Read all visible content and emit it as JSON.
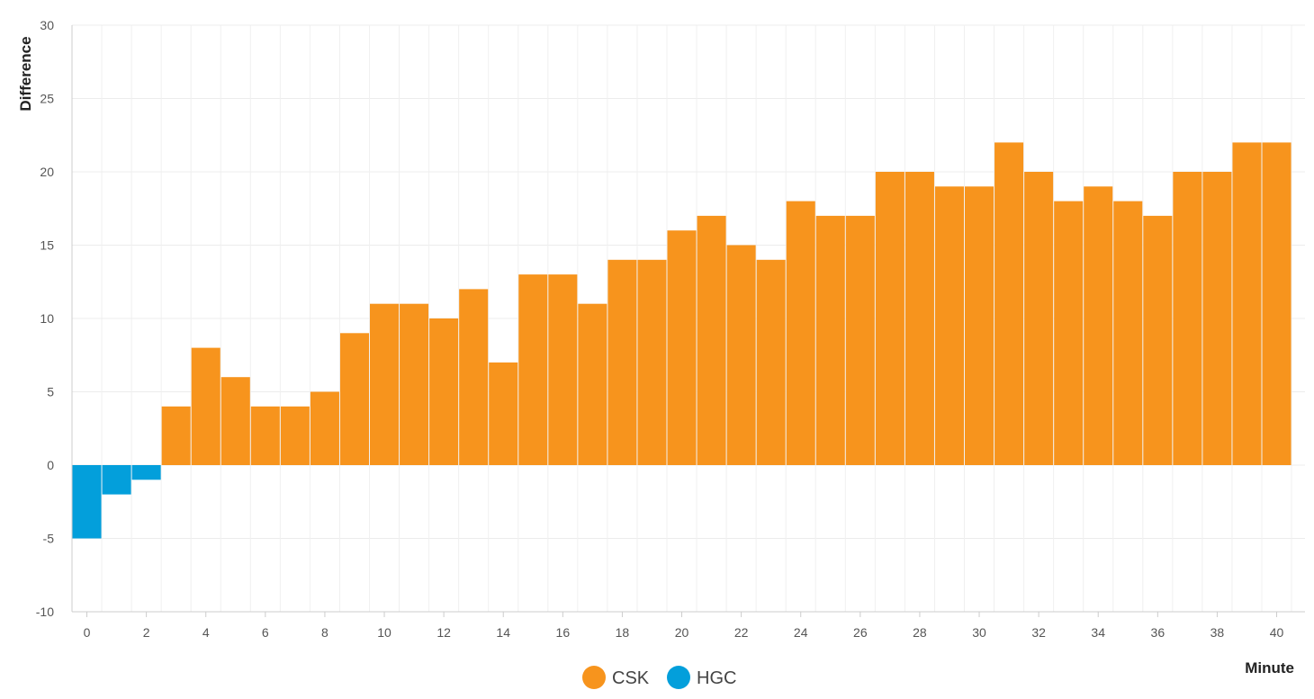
{
  "chart_data": {
    "type": "bar",
    "xlabel": "Minute",
    "ylabel": "Difference",
    "xlim": [
      0,
      40
    ],
    "ylim": [
      -10,
      30
    ],
    "y_ticks": [
      30,
      25,
      20,
      15,
      10,
      5,
      0,
      -5,
      -10
    ],
    "x_ticks": [
      0,
      2,
      4,
      6,
      8,
      10,
      12,
      14,
      16,
      18,
      20,
      22,
      24,
      26,
      28,
      30,
      32,
      34,
      36,
      38,
      40
    ],
    "grid": true,
    "legend_position": "bottom-center",
    "minutes": [
      0,
      1,
      2,
      3,
      4,
      5,
      6,
      7,
      8,
      9,
      10,
      11,
      12,
      13,
      14,
      15,
      16,
      17,
      18,
      19,
      20,
      21,
      22,
      23,
      24,
      25,
      26,
      27,
      28,
      29,
      30,
      31,
      32,
      33,
      34,
      35,
      36,
      37,
      38,
      39,
      40
    ],
    "values": [
      -5,
      -2,
      -1,
      4,
      8,
      6,
      4,
      4,
      5,
      9,
      11,
      11,
      10,
      12,
      7,
      13,
      13,
      11,
      14,
      14,
      16,
      17,
      15,
      14,
      18,
      17,
      17,
      20,
      20,
      19,
      19,
      22,
      20,
      18,
      19,
      18,
      17,
      20,
      20,
      22,
      22
    ],
    "series": [
      {
        "name": "CSK",
        "color": "#f7941d",
        "rule": "positive"
      },
      {
        "name": "HGC",
        "color": "#039fdb",
        "rule": "negative"
      }
    ]
  }
}
